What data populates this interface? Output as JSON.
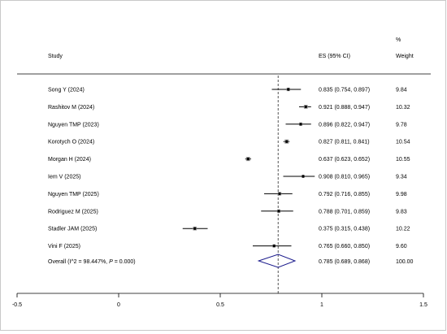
{
  "chart_data": {
    "type": "forest",
    "columns": {
      "study": "Study",
      "es": "ES (95% CI)",
      "weight_top": "%",
      "weight": "Weight"
    },
    "studies": [
      {
        "label": "Song Y (2024)",
        "es": 0.835,
        "lo": 0.754,
        "hi": 0.897,
        "es_text": "0.835 (0.754, 0.897)",
        "weight": "9.84"
      },
      {
        "label": "Rashitov M (2024)",
        "es": 0.921,
        "lo": 0.888,
        "hi": 0.947,
        "es_text": "0.921 (0.888, 0.947)",
        "weight": "10.32"
      },
      {
        "label": "Nguyen TMP (2023)",
        "es": 0.896,
        "lo": 0.822,
        "hi": 0.947,
        "es_text": "0.896 (0.822, 0.947)",
        "weight": "9.78"
      },
      {
        "label": "Korotych O (2024)",
        "es": 0.827,
        "lo": 0.811,
        "hi": 0.841,
        "es_text": "0.827 (0.811, 0.841)",
        "weight": "10.54"
      },
      {
        "label": "Morgan H (2024)",
        "es": 0.637,
        "lo": 0.623,
        "hi": 0.652,
        "es_text": "0.637 (0.623, 0.652)",
        "weight": "10.55"
      },
      {
        "label": "Iem V (2025)",
        "es": 0.908,
        "lo": 0.81,
        "hi": 0.965,
        "es_text": "0.908 (0.810, 0.965)",
        "weight": "9.34"
      },
      {
        "label": "Nguyen TMP (2025)",
        "es": 0.792,
        "lo": 0.716,
        "hi": 0.855,
        "es_text": "0.792 (0.716, 0.855)",
        "weight": "9.98"
      },
      {
        "label": "Rodriguez M (2025)",
        "es": 0.788,
        "lo": 0.701,
        "hi": 0.859,
        "es_text": "0.788 (0.701, 0.859)",
        "weight": "9.83"
      },
      {
        "label": "Stadler JAM (2025)",
        "es": 0.375,
        "lo": 0.315,
        "hi": 0.438,
        "es_text": "0.375 (0.315, 0.438)",
        "weight": "10.22"
      },
      {
        "label": "Vini F (2025)",
        "es": 0.765,
        "lo": 0.66,
        "hi": 0.85,
        "es_text": "0.765 (0.660, 0.850)",
        "weight": "9.60"
      }
    ],
    "overall": {
      "label_prefix": "Overall  (I^2 = 98.447%, ",
      "label_p": "P",
      "label_suffix": " = 0.000)",
      "es": 0.785,
      "lo": 0.689,
      "hi": 0.868,
      "es_text": "0.785 (0.689, 0.868)",
      "weight": "100.00"
    },
    "xlim": [
      -0.5,
      1.5
    ],
    "x_ticks": [
      -0.5,
      0,
      0.5,
      1,
      1.5
    ],
    "x_tick_labels": [
      "-0.5",
      "0",
      "0.5",
      "1",
      "1.5"
    ],
    "reference_line": 0.785,
    "colors": {
      "marker": "#000000",
      "diamond": "#1a1a8c",
      "ref_line": "#555555",
      "axis": "#000000"
    }
  }
}
